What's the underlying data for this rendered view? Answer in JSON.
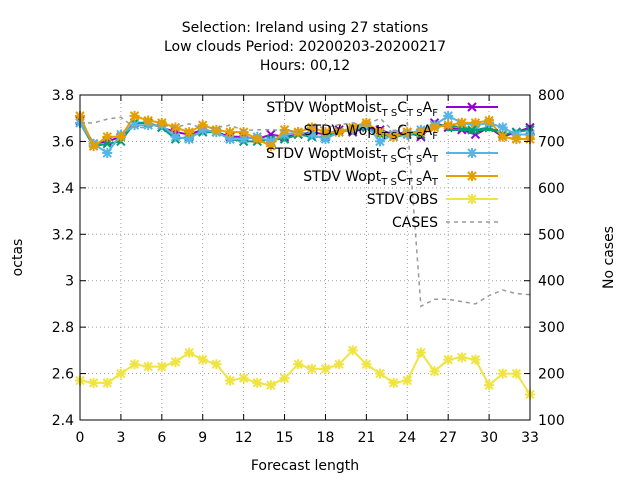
{
  "chart_data": {
    "type": "line",
    "title_lines": [
      "Selection: Ireland using    27 stations",
      "Low clouds   Period: 20200203-20200217",
      "Hours:  00,12"
    ],
    "xlabel": "Forecast length",
    "ylabel": "octas",
    "y2label": "No cases",
    "xlim": [
      0,
      33
    ],
    "ylim": [
      2.4,
      3.8
    ],
    "y2lim": [
      100,
      800
    ],
    "xticks": [
      0,
      3,
      6,
      9,
      12,
      15,
      18,
      21,
      24,
      27,
      30,
      33
    ],
    "yticks": [
      "2.4",
      "2.6",
      "2.8",
      "3",
      "3.2",
      "3.4",
      "3.6",
      "3.8"
    ],
    "y2ticks": [
      100,
      200,
      300,
      400,
      500,
      600,
      700,
      800
    ],
    "grid": true,
    "legend_position": "top-right",
    "x": [
      0,
      1,
      2,
      3,
      4,
      5,
      6,
      7,
      8,
      9,
      10,
      11,
      12,
      13,
      14,
      15,
      16,
      17,
      18,
      19,
      20,
      21,
      22,
      23,
      24,
      25,
      26,
      27,
      28,
      29,
      30,
      31,
      32,
      33
    ],
    "series": [
      {
        "name_parts": [
          "STDV WoptMoist",
          "T S",
          "C",
          "T S",
          "A",
          "F"
        ],
        "color": "#9400d3",
        "marker": "cross",
        "axis": "y",
        "values": [
          3.69,
          3.59,
          3.6,
          3.62,
          3.68,
          3.68,
          3.66,
          3.64,
          3.63,
          3.65,
          3.64,
          3.62,
          3.62,
          3.61,
          3.63,
          3.62,
          3.63,
          3.64,
          3.63,
          3.65,
          3.64,
          3.66,
          3.65,
          3.63,
          3.64,
          3.62,
          3.68,
          3.66,
          3.65,
          3.63,
          3.66,
          3.62,
          3.64,
          3.66
        ]
      },
      {
        "name_parts": [
          "STDV Wopt",
          "T S",
          "C",
          "T S",
          "A",
          "F"
        ],
        "color": "#009e73",
        "marker": "cross",
        "axis": "y",
        "values": [
          3.68,
          3.58,
          3.59,
          3.6,
          3.68,
          3.68,
          3.66,
          3.61,
          3.62,
          3.64,
          3.64,
          3.61,
          3.6,
          3.6,
          3.61,
          3.61,
          3.63,
          3.62,
          3.62,
          3.64,
          3.65,
          3.66,
          3.63,
          3.62,
          3.63,
          3.63,
          3.67,
          3.67,
          3.66,
          3.65,
          3.66,
          3.63,
          3.64,
          3.65
        ]
      },
      {
        "name_parts": [
          "STDV WoptMoist",
          "T S",
          "C",
          "T S",
          "A",
          "T"
        ],
        "color": "#56b4e9",
        "marker": "star",
        "axis": "y",
        "values": [
          3.68,
          3.59,
          3.55,
          3.63,
          3.67,
          3.67,
          3.67,
          3.62,
          3.61,
          3.65,
          3.64,
          3.61,
          3.61,
          3.62,
          3.6,
          3.63,
          3.64,
          3.63,
          3.61,
          3.64,
          3.65,
          3.67,
          3.6,
          3.63,
          3.63,
          3.65,
          3.67,
          3.71,
          3.68,
          3.67,
          3.68,
          3.66,
          3.63,
          3.63
        ]
      },
      {
        "name_parts": [
          "STDV Wopt",
          "T S",
          "C",
          "T S",
          "A",
          "T"
        ],
        "color": "#e69f00",
        "marker": "star",
        "axis": "y",
        "values": [
          3.71,
          3.58,
          3.62,
          3.62,
          3.71,
          3.69,
          3.68,
          3.66,
          3.64,
          3.67,
          3.65,
          3.64,
          3.64,
          3.61,
          3.58,
          3.65,
          3.64,
          3.66,
          3.64,
          3.64,
          3.66,
          3.68,
          3.64,
          3.62,
          3.64,
          3.64,
          3.66,
          3.67,
          3.68,
          3.68,
          3.69,
          3.62,
          3.61,
          3.61
        ]
      },
      {
        "name_parts": [
          "STDV OBS"
        ],
        "color": "#f0e442",
        "marker": "star",
        "axis": "y",
        "values": [
          2.57,
          2.56,
          2.56,
          2.6,
          2.64,
          2.63,
          2.63,
          2.65,
          2.69,
          2.66,
          2.64,
          2.57,
          2.58,
          2.56,
          2.55,
          2.58,
          2.64,
          2.62,
          2.62,
          2.64,
          2.7,
          2.64,
          2.6,
          2.56,
          2.57,
          2.69,
          2.61,
          2.66,
          2.67,
          2.66,
          2.55,
          2.6,
          2.6,
          2.51
        ]
      },
      {
        "name_parts": [
          "CASES"
        ],
        "color": "#999999",
        "marker": "none",
        "dash": true,
        "axis": "y2",
        "values": [
          740,
          740,
          748,
          752,
          730,
          730,
          735,
          730,
          738,
          728,
          730,
          735,
          724,
          725,
          725,
          724,
          720,
          732,
          730,
          736,
          740,
          735,
          750,
          722,
          740,
          345,
          360,
          360,
          355,
          350,
          368,
          380,
          372,
          370
        ]
      }
    ]
  }
}
